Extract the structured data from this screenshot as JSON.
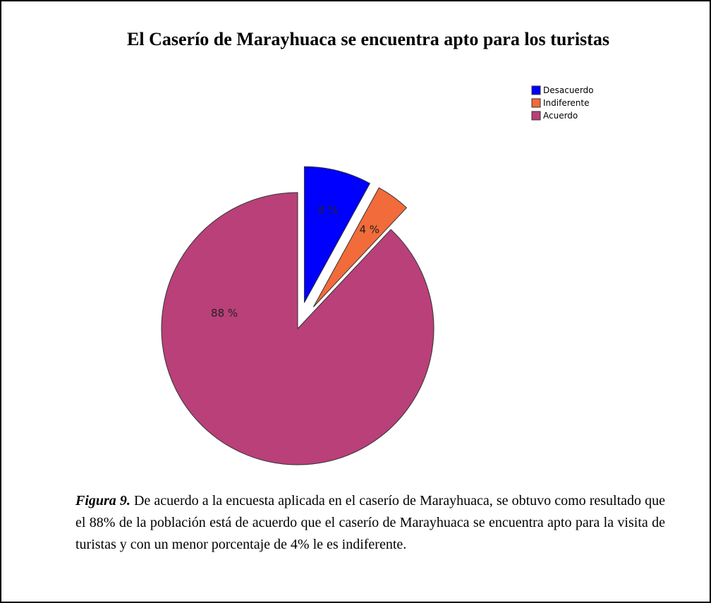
{
  "chart_data": {
    "type": "pie",
    "title": "El Caserío de Marayhuaca se encuentra apto para los turistas",
    "categories": [
      "Desacuerdo",
      "Indiferente",
      "Acuerdo"
    ],
    "values": [
      8,
      4,
      88
    ],
    "value_labels": [
      "8 %",
      "4 %",
      "88 %"
    ],
    "colors": [
      "#0000ff",
      "#f26b3a",
      "#b94079"
    ],
    "legend": "top-right"
  },
  "caption": {
    "label": "Figura 9.",
    "text": "De acuerdo a la encuesta aplicada en el caserío de Marayhuaca, se obtuvo como resultado que el 88% de la población está de acuerdo que el caserío de Marayhuaca se encuentra apto para la visita de turistas y con un menor porcentaje de 4% le es indiferente."
  }
}
